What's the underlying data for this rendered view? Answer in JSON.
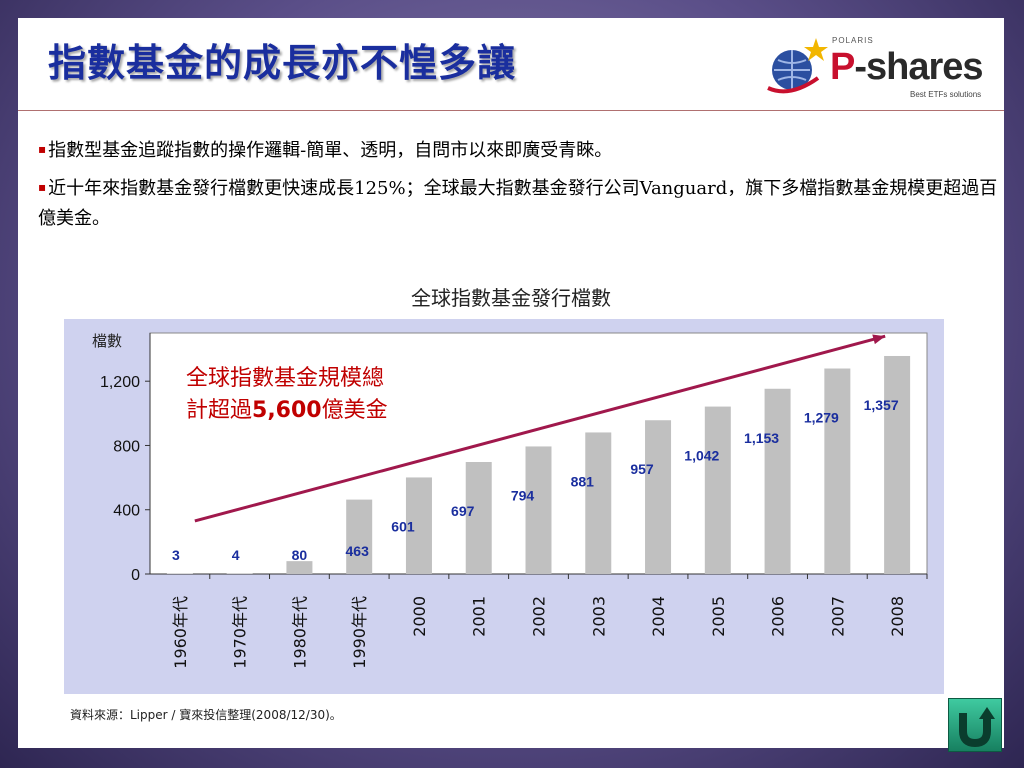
{
  "title": "指數基金的成長亦不惶多讓",
  "logo": {
    "brand_p": "P",
    "brand_rest": "-shares",
    "top": "POLARIS",
    "tagline": "Best ETFs solutions"
  },
  "bullets": [
    "指數型基金追蹤指數的操作邏輯-簡單、透明，自問市以來即廣受青睞。",
    "近十年來指數基金發行檔數更快速成長125%；全球最大指數基金發行公司Vanguard，旗下多檔指數基金規模更超過百億美金。"
  ],
  "bullet_marker": "▪",
  "source": "資料來源：Lipper / 寶來投信整理(2008/12/30)。",
  "icons": {
    "back": "u-turn-arrow-icon",
    "logo": "globe-star-icon"
  },
  "colors": {
    "title": "#1a2e9e",
    "bar": "#c0c0c0",
    "data_label": "#1a2e9e",
    "arrow": "#a0184c",
    "annotation": "#c00000",
    "plot_bg": "#ffffff",
    "frame_bg": "#cfd2ef"
  },
  "chart_data": {
    "type": "bar",
    "title": "全球指數基金發行檔數",
    "ylabel": "檔數",
    "xlabel": "",
    "categories": [
      "1960年代",
      "1970年代",
      "1980年代",
      "1990年代",
      "2000",
      "2001",
      "2002",
      "2003",
      "2004",
      "2005",
      "2006",
      "2007",
      "2008"
    ],
    "values": [
      3,
      4,
      80,
      463,
      601,
      697,
      794,
      881,
      957,
      1042,
      1153,
      1279,
      1357
    ],
    "value_labels": [
      "3",
      "4",
      "80",
      "463",
      "601",
      "697",
      "794",
      "881",
      "957",
      "1,042",
      "1,153",
      "1,279",
      "1,357"
    ],
    "ylim": [
      0,
      1500
    ],
    "yticks": [
      0,
      400,
      800,
      1200
    ],
    "ytick_labels": [
      "0",
      "400",
      "800",
      "1,200"
    ],
    "grid": false,
    "annotation": {
      "line1": "全球指數基金規模總",
      "line2_prefix": "計超過",
      "line2_bold": "5,600",
      "line2_suffix": "億美金"
    },
    "trend_arrow": true
  }
}
